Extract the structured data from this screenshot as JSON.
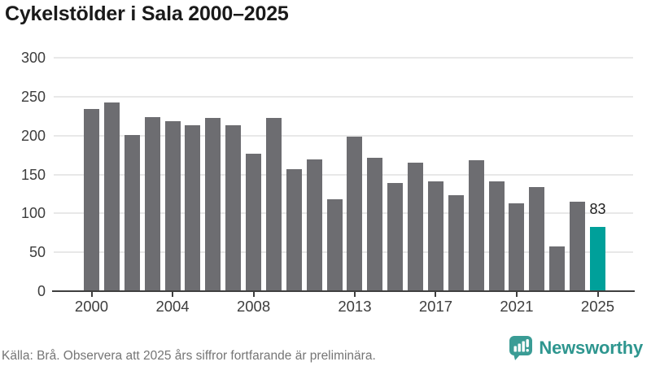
{
  "title": "Cykelstölder i Sala 2000–2025",
  "footer": {
    "source_note": "Källa: Brå. Observera att 2025 års siffror fortfarande är preliminära.",
    "brand": "Newsworthy"
  },
  "colors": {
    "bar": "#6d6d71",
    "highlight": "#00a09a",
    "axis": "#3f3f3f",
    "grid": "#e8e8e8",
    "tick_label": "#3d3d3d",
    "title_text": "#1a1a1a",
    "footer_text": "#757575",
    "brand_teal": "#2e968f",
    "logo_fill": "#3a9c95"
  },
  "chart_data": {
    "type": "bar",
    "title": "Cykelstölder i Sala 2000–2025",
    "xlabel": "",
    "ylabel": "",
    "x": [
      2000,
      2001,
      2002,
      2003,
      2004,
      2005,
      2006,
      2007,
      2008,
      2009,
      2010,
      2011,
      2012,
      2013,
      2014,
      2015,
      2016,
      2017,
      2018,
      2019,
      2020,
      2021,
      2022,
      2023,
      2024,
      2025
    ],
    "values": [
      234,
      243,
      201,
      224,
      218,
      213,
      223,
      213,
      177,
      223,
      157,
      169,
      118,
      199,
      171,
      139,
      165,
      141,
      123,
      168,
      141,
      113,
      134,
      57,
      115,
      83
    ],
    "highlight_year": 2025,
    "highlight_value_label": "83",
    "y_ticks": [
      0,
      50,
      100,
      150,
      200,
      250,
      300
    ],
    "ylim": [
      0,
      300
    ],
    "x_tick_years": [
      2000,
      2004,
      2008,
      2013,
      2017,
      2021,
      2025
    ],
    "x_tick_labels": [
      "2000",
      "2004",
      "2008",
      "2013",
      "2017",
      "2021",
      "2025"
    ],
    "grid": "horizontal",
    "legend": "none"
  }
}
